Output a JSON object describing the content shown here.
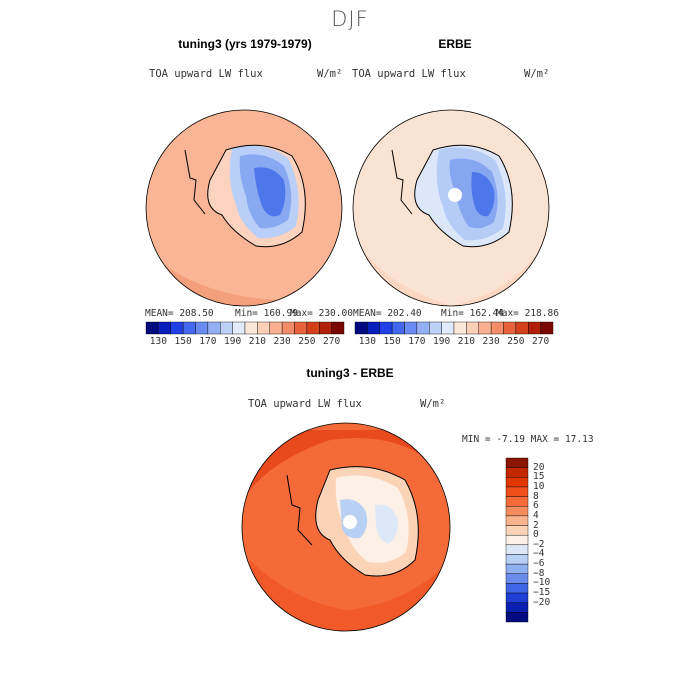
{
  "season": "DJF",
  "panels": [
    {
      "title": "tuning3 (yrs 1979-1979)",
      "variable": "TOA upward LW flux",
      "units": "W/m²",
      "stats": {
        "mean": "MEAN= 208.50",
        "min": "Min= 160.99",
        "max": "Max= 230.00"
      }
    },
    {
      "title": "ERBE",
      "variable": "TOA upward LW flux",
      "units": "W/m²",
      "stats": {
        "mean": "MEAN= 202.40",
        "min": "Min= 162.44",
        "max": "Max= 218.86"
      }
    }
  ],
  "diff_panel": {
    "title": "tuning3 - ERBE",
    "variable": "TOA upward LW flux",
    "units": "W/m²",
    "minmax": "MIN =  -7.19 MAX =  17.13"
  },
  "abs_colorbar": {
    "labels": [
      "130",
      "150",
      "170",
      "190",
      "210",
      "230",
      "250",
      "270"
    ],
    "colors": [
      "#000a80",
      "#0a1fbf",
      "#2040e6",
      "#4468f0",
      "#6a8cf2",
      "#93b0f5",
      "#bcd0f8",
      "#e1ebfb",
      "#fde8da",
      "#fcd0b8",
      "#f9b090",
      "#f48c6a",
      "#e8623c",
      "#d2401a",
      "#b02008",
      "#7a0800"
    ]
  },
  "diff_colorbar": {
    "labels": [
      "20",
      "15",
      "10",
      "8",
      "6",
      "4",
      "2",
      "0",
      "−2",
      "−4",
      "−6",
      "−8",
      "−10",
      "−15",
      "−20"
    ],
    "colors": [
      "#8c1500",
      "#c42800",
      "#e23800",
      "#f04e1a",
      "#f46a38",
      "#f68c5e",
      "#f9b48e",
      "#fbd4b8",
      "#fdf0e6",
      "#dce8f8",
      "#b8d0f4",
      "#8fb0f0",
      "#6a8cec",
      "#3f64e6",
      "#1e3ed6",
      "#0a20b0",
      "#000c80"
    ]
  }
}
